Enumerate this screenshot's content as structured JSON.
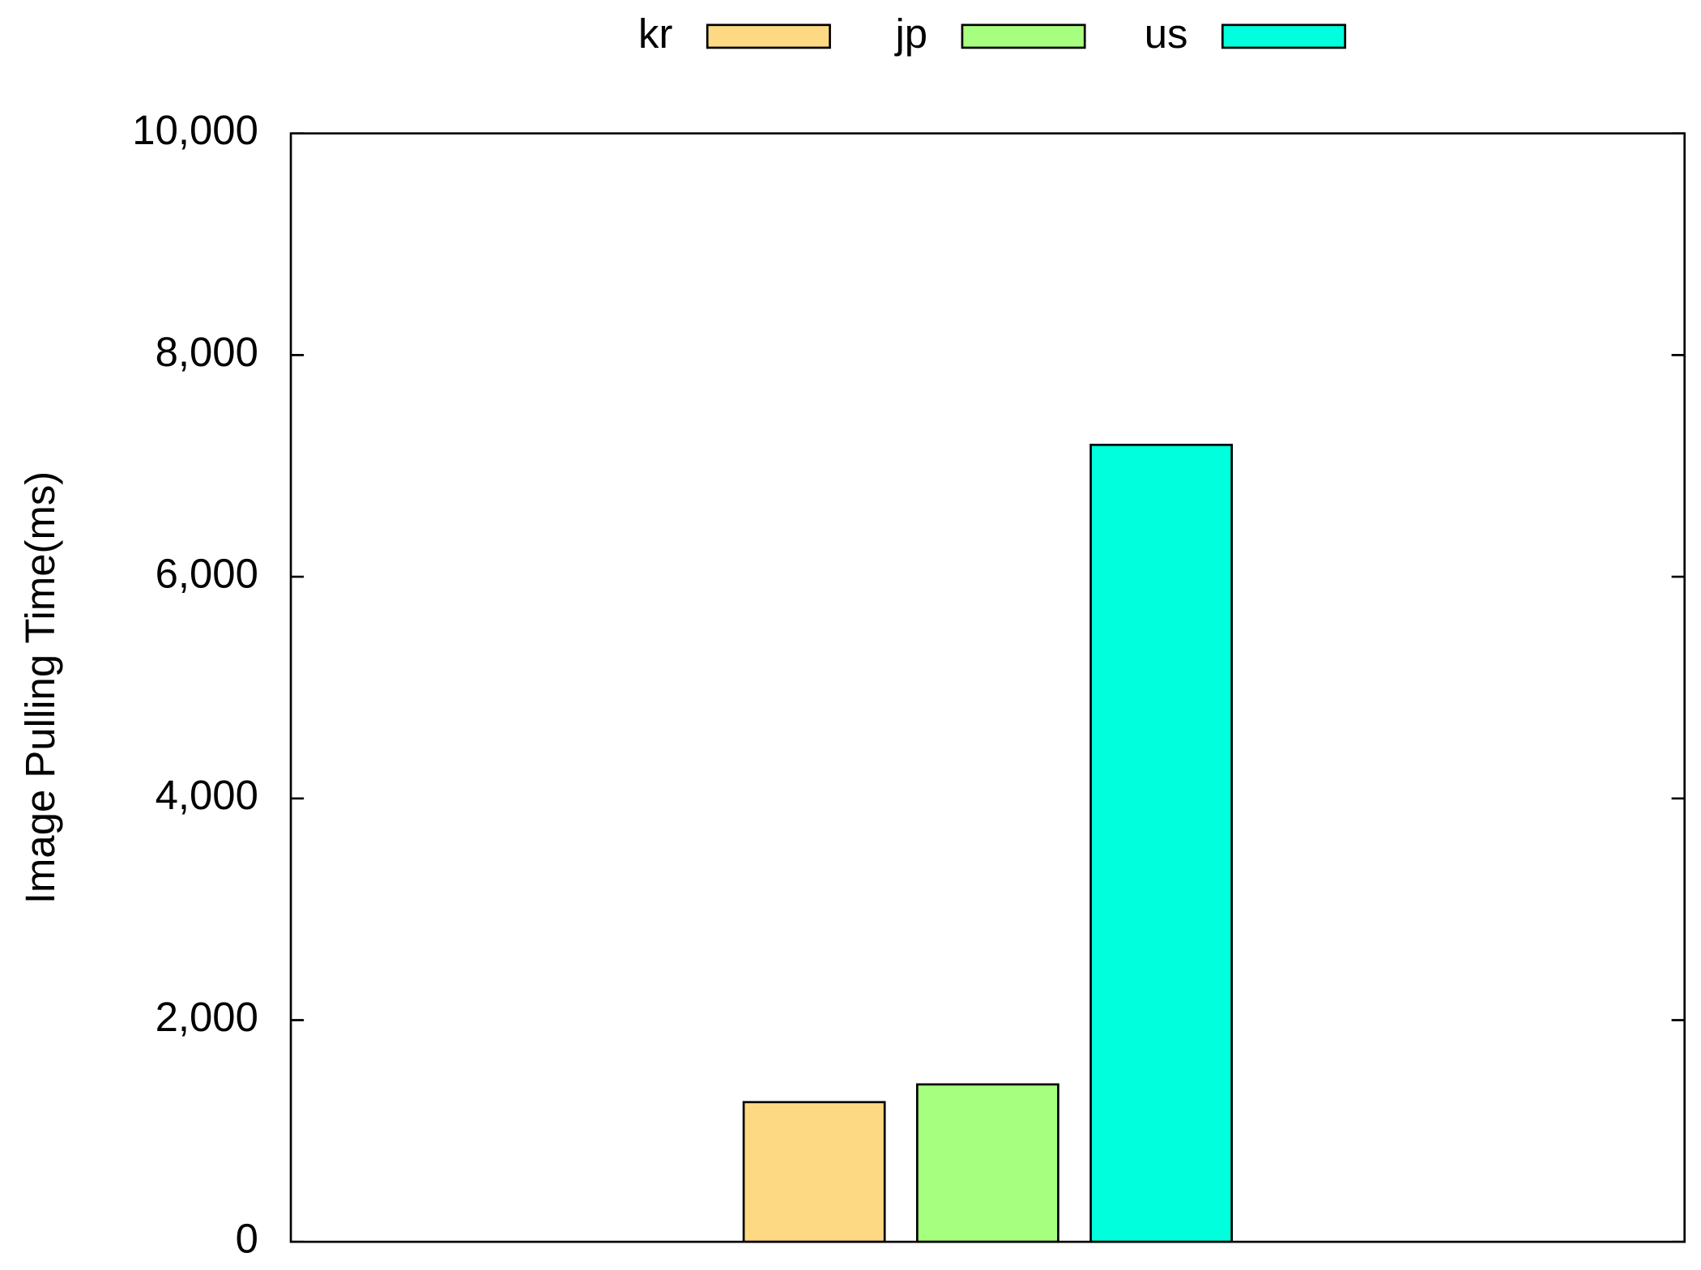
{
  "chart_data": {
    "type": "bar",
    "ylabel": "Image Pulling Time(ms)",
    "categories": [
      null
    ],
    "series": [
      {
        "name": "kr",
        "color": "#fdd984",
        "values": [
          1260
        ]
      },
      {
        "name": "jp",
        "color": "#a6ff7e",
        "values": [
          1420
        ]
      },
      {
        "name": "us",
        "color": "#00ffdd",
        "values": [
          7190
        ]
      }
    ],
    "ylim": [
      0,
      10000
    ],
    "yticks": [
      0,
      {
        "value": 2000,
        "label": "2,000"
      },
      {
        "value": 4000,
        "label": "4,000"
      },
      {
        "value": 6000,
        "label": "6,000"
      },
      {
        "value": 8000,
        "label": "8,000"
      },
      {
        "value": 10000,
        "label": "10,000"
      }
    ],
    "grid": false,
    "legend": "top"
  }
}
